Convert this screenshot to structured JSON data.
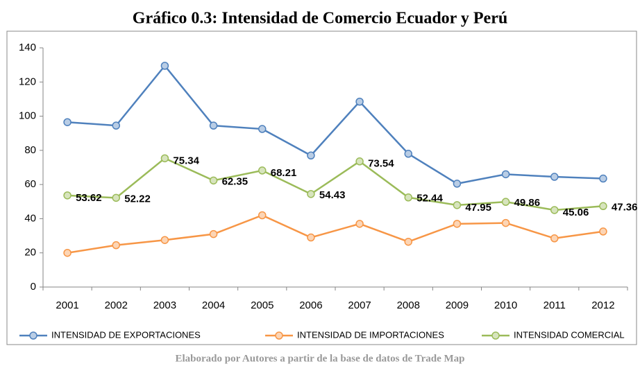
{
  "chart_data": {
    "type": "line",
    "title": "Gráfico 0.3: Intensidad de Comercio Ecuador y Perú",
    "source": "Elaborado por Autores a partir de la base de datos de Trade Map",
    "categories": [
      "2001",
      "2002",
      "2003",
      "2004",
      "2005",
      "2006",
      "2007",
      "2008",
      "2009",
      "2010",
      "2011",
      "2012"
    ],
    "series": [
      {
        "name": "INTENSIDAD DE EXPORTACIONES",
        "color": "#4f81bd",
        "marker_fill": "#b9cde5",
        "values": [
          96.5,
          94.5,
          129.5,
          94.5,
          92.5,
          77,
          108.5,
          78,
          60.5,
          66,
          64.5,
          63.5
        ]
      },
      {
        "name": "INTENSIDAD DE IMPORTACIONES",
        "color": "#f79646",
        "marker_fill": "#fcd5b5",
        "values": [
          20,
          24.5,
          27.5,
          31,
          42,
          29,
          37,
          26.5,
          37,
          37.5,
          28.5,
          32.5
        ]
      },
      {
        "name": "INTENSIDAD COMERCIAL",
        "color": "#9bbb59",
        "marker_fill": "#d7e4bd",
        "values": [
          53.62,
          52.22,
          75.34,
          62.35,
          68.21,
          54.43,
          73.54,
          52.44,
          47.95,
          49.86,
          45.06,
          47.36
        ],
        "show_labels": true
      }
    ],
    "ylim": [
      0,
      140
    ],
    "yticks": [
      0,
      20,
      40,
      60,
      80,
      100,
      120,
      140
    ],
    "grid": false,
    "legend": "bottom"
  }
}
